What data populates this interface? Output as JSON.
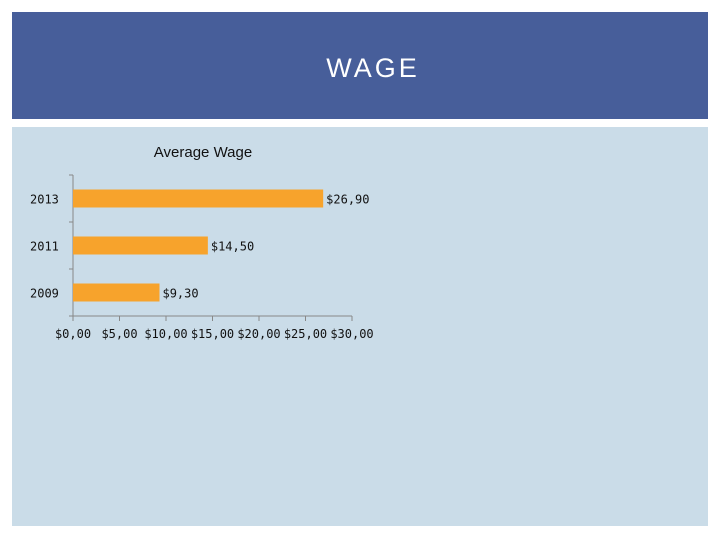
{
  "slide": {
    "title": "WAGE"
  },
  "colors": {
    "title_band": "#475e9a",
    "panel": "#cadce8",
    "bar": "#f7a32c",
    "axis": "#888888"
  },
  "chart_data": {
    "type": "bar",
    "orientation": "horizontal",
    "title": "Average Wage",
    "categories": [
      "2013",
      "2011",
      "2009"
    ],
    "values": [
      26.9,
      14.5,
      9.3
    ],
    "data_labels": [
      "$26,90",
      "$14,50",
      "$9,30"
    ],
    "xlim": [
      0,
      30
    ],
    "x_ticks": [
      0,
      5,
      10,
      15,
      20,
      25,
      30
    ],
    "x_tick_labels": [
      "$0,00",
      "$5,00",
      "$10,00",
      "$15,00",
      "$20,00",
      "$25,00",
      "$30,00"
    ],
    "xlabel": "",
    "ylabel": "",
    "grid": false,
    "legend": "none"
  }
}
